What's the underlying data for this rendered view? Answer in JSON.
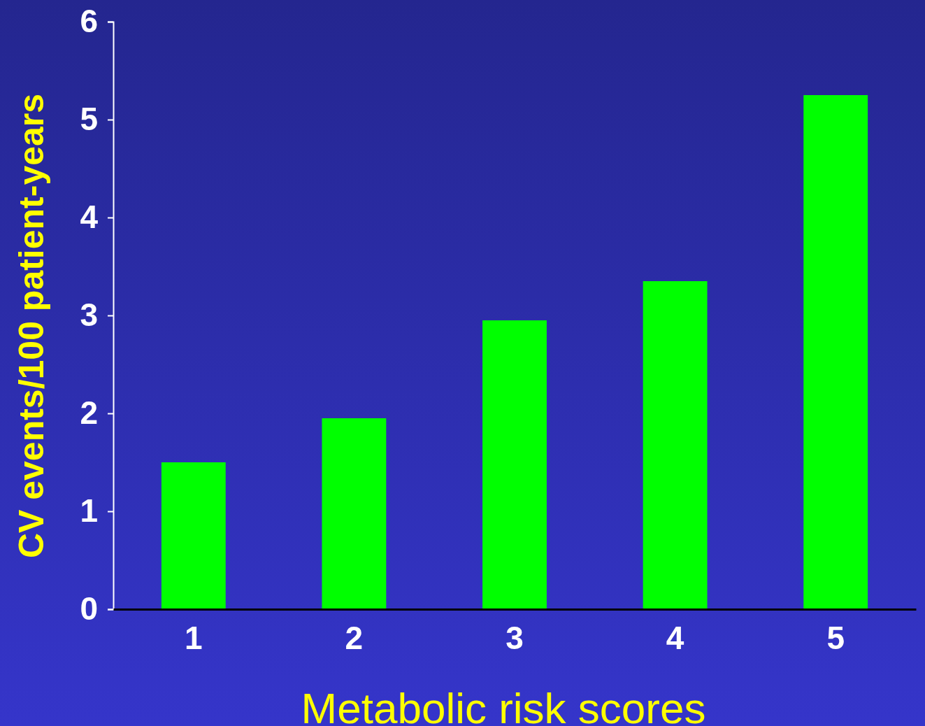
{
  "chart_data": {
    "type": "bar",
    "xlabel": "Metabolic risk scores",
    "ylabel": "CV events/100 patient-years",
    "categories": [
      "1",
      "2",
      "3",
      "4",
      "5"
    ],
    "values": [
      1.5,
      1.95,
      2.95,
      3.35,
      5.25
    ],
    "color": "#00ff00",
    "ylim": [
      0,
      6
    ],
    "yticks": [
      0,
      1,
      2,
      3,
      4,
      5,
      6
    ],
    "grid": false,
    "legend": false
  }
}
